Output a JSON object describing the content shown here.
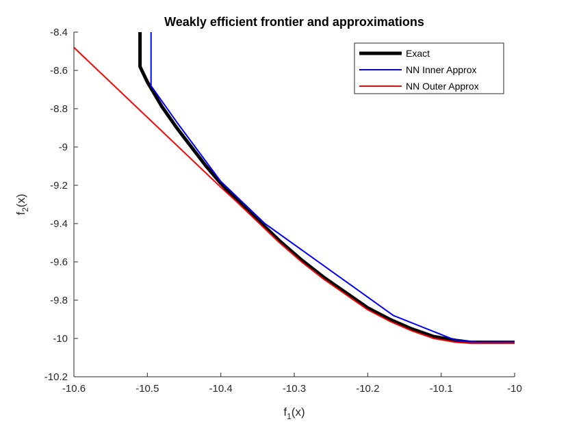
{
  "chart_data": {
    "type": "line",
    "title": "Weakly efficient frontier and approximations",
    "xlabel": {
      "base": "f",
      "sub": "1",
      "tail": "(x)"
    },
    "ylabel": {
      "base": "f",
      "sub": "2",
      "tail": "(x)"
    },
    "xlim": [
      -10.6,
      -10
    ],
    "ylim": [
      -10.2,
      -8.4
    ],
    "xticks": [
      -10.6,
      -10.5,
      -10.4,
      -10.3,
      -10.2,
      -10.1,
      -10
    ],
    "xtick_labels": [
      "-10.6",
      "-10.5",
      "-10.4",
      "-10.3",
      "-10.2",
      "-10.1",
      "-10"
    ],
    "yticks": [
      -10.2,
      -10,
      -9.8,
      -9.6,
      -9.4,
      -9.2,
      -9,
      -8.8,
      -8.6,
      -8.4
    ],
    "ytick_labels": [
      "-10.2",
      "-10",
      "-9.8",
      "-9.6",
      "-9.4",
      "-9.2",
      "-9",
      "-8.8",
      "-8.6",
      "-8.4"
    ],
    "grid": false,
    "legend_position": "top-right",
    "series": [
      {
        "name": "Exact",
        "color": "#000000",
        "width": 5,
        "x": [
          -10.51,
          -10.51,
          -10.5,
          -10.48,
          -10.46,
          -10.44,
          -10.42,
          -10.4,
          -10.38,
          -10.35,
          -10.32,
          -10.29,
          -10.26,
          -10.23,
          -10.2,
          -10.17,
          -10.14,
          -10.11,
          -10.08,
          -10.06,
          -10.05,
          -10.03,
          -10
        ],
        "y": [
          -8.4,
          -8.58,
          -8.66,
          -8.79,
          -8.9,
          -9.0,
          -9.1,
          -9.19,
          -9.27,
          -9.38,
          -9.49,
          -9.59,
          -9.68,
          -9.76,
          -9.84,
          -9.9,
          -9.95,
          -9.99,
          -10.01,
          -10.02,
          -10.02,
          -10.02,
          -10.02
        ]
      },
      {
        "name": "NN Inner Approx",
        "color": "#0000ff",
        "width": 2,
        "x": [
          -10.495,
          -10.495,
          -10.46,
          -10.4,
          -10.34,
          -10.165,
          -10.08,
          -10.05,
          -10
        ],
        "y": [
          -8.4,
          -8.68,
          -8.87,
          -9.18,
          -9.4,
          -9.88,
          -10.01,
          -10.02,
          -10.02
        ]
      },
      {
        "name": "NN Outer Approx",
        "color": "#ff0000",
        "width": 2,
        "x": [
          -10.6,
          -10.4,
          -10.38,
          -10.35,
          -10.32,
          -10.29,
          -10.26,
          -10.23,
          -10.2,
          -10.17,
          -10.14,
          -10.11,
          -10.08,
          -10.06,
          -10.05,
          -10.03,
          -10
        ],
        "y": [
          -8.48,
          -9.21,
          -9.28,
          -9.39,
          -9.5,
          -9.6,
          -9.69,
          -9.77,
          -9.85,
          -9.91,
          -9.96,
          -10.0,
          -10.02,
          -10.025,
          -10.025,
          -10.025,
          -10.025
        ]
      }
    ]
  }
}
